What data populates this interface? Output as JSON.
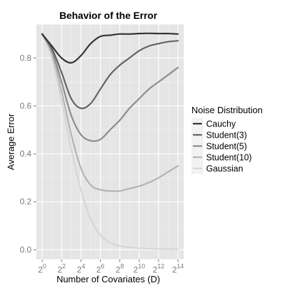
{
  "chart_data": {
    "type": "line",
    "title": "Behavior of the Error",
    "xlabel": "Number of Covariates (D)",
    "ylabel": "Average Error",
    "x": [
      0,
      1,
      2,
      3,
      4,
      5,
      6,
      7,
      8,
      9,
      10,
      11,
      12,
      13,
      14
    ],
    "x_tick_labels": [
      {
        "base": "2",
        "exp": "0"
      },
      {
        "base": "2",
        "exp": "2"
      },
      {
        "base": "2",
        "exp": "4"
      },
      {
        "base": "2",
        "exp": "6"
      },
      {
        "base": "2",
        "exp": "8"
      },
      {
        "base": "2",
        "exp": "10"
      },
      {
        "base": "2",
        "exp": "12"
      },
      {
        "base": "2",
        "exp": "14"
      }
    ],
    "x_tick_values": [
      0,
      2,
      4,
      6,
      8,
      10,
      12,
      14
    ],
    "y_ticks": [
      "0.0",
      "0.2",
      "0.4",
      "0.6",
      "0.8"
    ],
    "y_tick_values": [
      0.0,
      0.2,
      0.4,
      0.6,
      0.8
    ],
    "xlim": [
      -0.6,
      14.6
    ],
    "ylim": [
      -0.04,
      0.94
    ],
    "x_scale": "log2",
    "grid": true,
    "legend": {
      "title": "Noise Distribution",
      "placement": "right"
    },
    "series": [
      {
        "name": "Cauchy",
        "color": "#333333",
        "values": [
          0.9,
          0.85,
          0.8,
          0.78,
          0.81,
          0.86,
          0.89,
          0.895,
          0.9,
          0.9,
          0.902,
          0.903,
          0.902,
          0.902,
          0.9
        ]
      },
      {
        "name": "Student(3)",
        "color": "#636363",
        "values": [
          0.9,
          0.84,
          0.74,
          0.63,
          0.59,
          0.61,
          0.67,
          0.73,
          0.77,
          0.8,
          0.83,
          0.85,
          0.86,
          0.868,
          0.872
        ]
      },
      {
        "name": "Student(5)",
        "color": "#8c8c8c",
        "values": [
          0.9,
          0.83,
          0.7,
          0.56,
          0.48,
          0.455,
          0.46,
          0.5,
          0.54,
          0.59,
          0.63,
          0.67,
          0.7,
          0.73,
          0.76
        ]
      },
      {
        "name": "Student(10)",
        "color": "#b3b3b3",
        "values": [
          0.9,
          0.82,
          0.66,
          0.48,
          0.34,
          0.27,
          0.25,
          0.245,
          0.245,
          0.255,
          0.265,
          0.28,
          0.3,
          0.325,
          0.35
        ]
      },
      {
        "name": "Gaussian",
        "color": "#d6d6d6",
        "values": [
          0.9,
          0.8,
          0.62,
          0.42,
          0.25,
          0.13,
          0.06,
          0.03,
          0.015,
          0.01,
          0.006,
          0.004,
          0.003,
          0.002,
          0.002
        ]
      }
    ]
  }
}
